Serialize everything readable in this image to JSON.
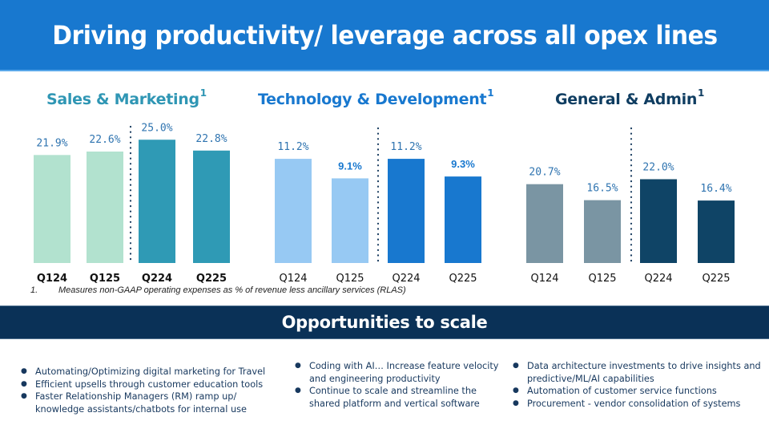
{
  "header": {
    "title": "Driving productivity/ leverage across all opex lines"
  },
  "panels": [
    {
      "title": "Sales & Marketing",
      "superscript": "1",
      "title_color": "#2f96b4"
    },
    {
      "title": "Technology & Development",
      "superscript": "1",
      "title_color": "#1878cf"
    },
    {
      "title": "General & Admin",
      "superscript": "1",
      "title_color": "#0f3d61"
    }
  ],
  "chart_data": [
    {
      "type": "bar",
      "title": "Sales & Marketing",
      "categories": [
        "Q124",
        "Q125",
        "Q224",
        "Q225"
      ],
      "values": [
        21.9,
        22.6,
        25.0,
        22.8
      ],
      "labels": [
        "21.9%",
        "22.6%",
        "25.0%",
        "22.8%"
      ],
      "colors": [
        "#b2e2cf",
        "#b2e2cf",
        "#2f9ab5",
        "#2f9ab5"
      ],
      "unit": "% of RLAS",
      "separator_after_index": 1,
      "grid": false
    },
    {
      "type": "bar",
      "title": "Technology & Development",
      "categories": [
        "Q124",
        "Q125",
        "Q224",
        "Q225"
      ],
      "values": [
        11.2,
        9.1,
        11.2,
        9.3
      ],
      "labels": [
        "11.2%",
        "9.1%",
        "11.2%",
        "9.3%"
      ],
      "colors": [
        "#97c9f3",
        "#97c9f3",
        "#1878cf",
        "#1878cf"
      ],
      "unit": "% of RLAS",
      "separator_after_index": 1,
      "grid": false
    },
    {
      "type": "bar",
      "title": "General & Admin",
      "categories": [
        "Q124",
        "Q125",
        "Q224",
        "Q225"
      ],
      "values": [
        20.7,
        16.5,
        22.0,
        16.4
      ],
      "labels": [
        "20.7%",
        "16.5%",
        "22.0%",
        "16.4%"
      ],
      "colors": [
        "#7a95a3",
        "#7a95a3",
        "#0f4466",
        "#0f4466"
      ],
      "unit": "% of RLAS",
      "separator_after_index": 1,
      "grid": false
    }
  ],
  "footnote": {
    "number": "1.",
    "text": "Measures non-GAAP operating expenses as % of revenue less ancillary services (RLAS)"
  },
  "opportunities": {
    "title": "Opportunities to scale",
    "columns": [
      {
        "items": [
          "Automating/Optimizing digital marketing for Travel",
          "Efficient upsells through customer education tools",
          "Faster Relationship Managers (RM) ramp up/ knowledge assistants/chatbots for internal use"
        ]
      },
      {
        "items": [
          "Coding with AI… Increase feature velocity and engineering productivity",
          "Continue to scale and streamline the shared platform and vertical software"
        ]
      },
      {
        "items": [
          "Data architecture investments to drive insights and predictive/ML/AI  capabilities",
          "Automation of customer service functions",
          "Procurement - vendor  consolidation of systems"
        ]
      }
    ]
  }
}
